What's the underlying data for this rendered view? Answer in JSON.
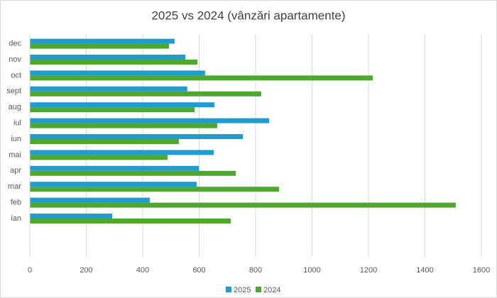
{
  "chart_data": {
    "type": "bar",
    "orientation": "horizontal",
    "title": "2025 vs 2024 (vânzări apartamente)",
    "categories": [
      "ian",
      "feb",
      "mar",
      "apr",
      "mai",
      "iun",
      "iul",
      "aug",
      "sept",
      "oct",
      "nov",
      "dec"
    ],
    "series": [
      {
        "name": "2025",
        "color": "#1f9dd3",
        "values": [
          292,
          425,
          591,
          599,
          652,
          755,
          848,
          654,
          558,
          621,
          551,
          513
        ]
      },
      {
        "name": "2024",
        "color": "#4ea72e",
        "values": [
          712,
          1509,
          883,
          730,
          488,
          528,
          664,
          584,
          820,
          1215,
          594,
          493
        ]
      }
    ],
    "xlim": [
      0,
      1600
    ],
    "xticks": [
      0,
      200,
      400,
      600,
      800,
      1000,
      1200,
      1400,
      1600
    ],
    "grid": true,
    "legend": "bottom"
  }
}
